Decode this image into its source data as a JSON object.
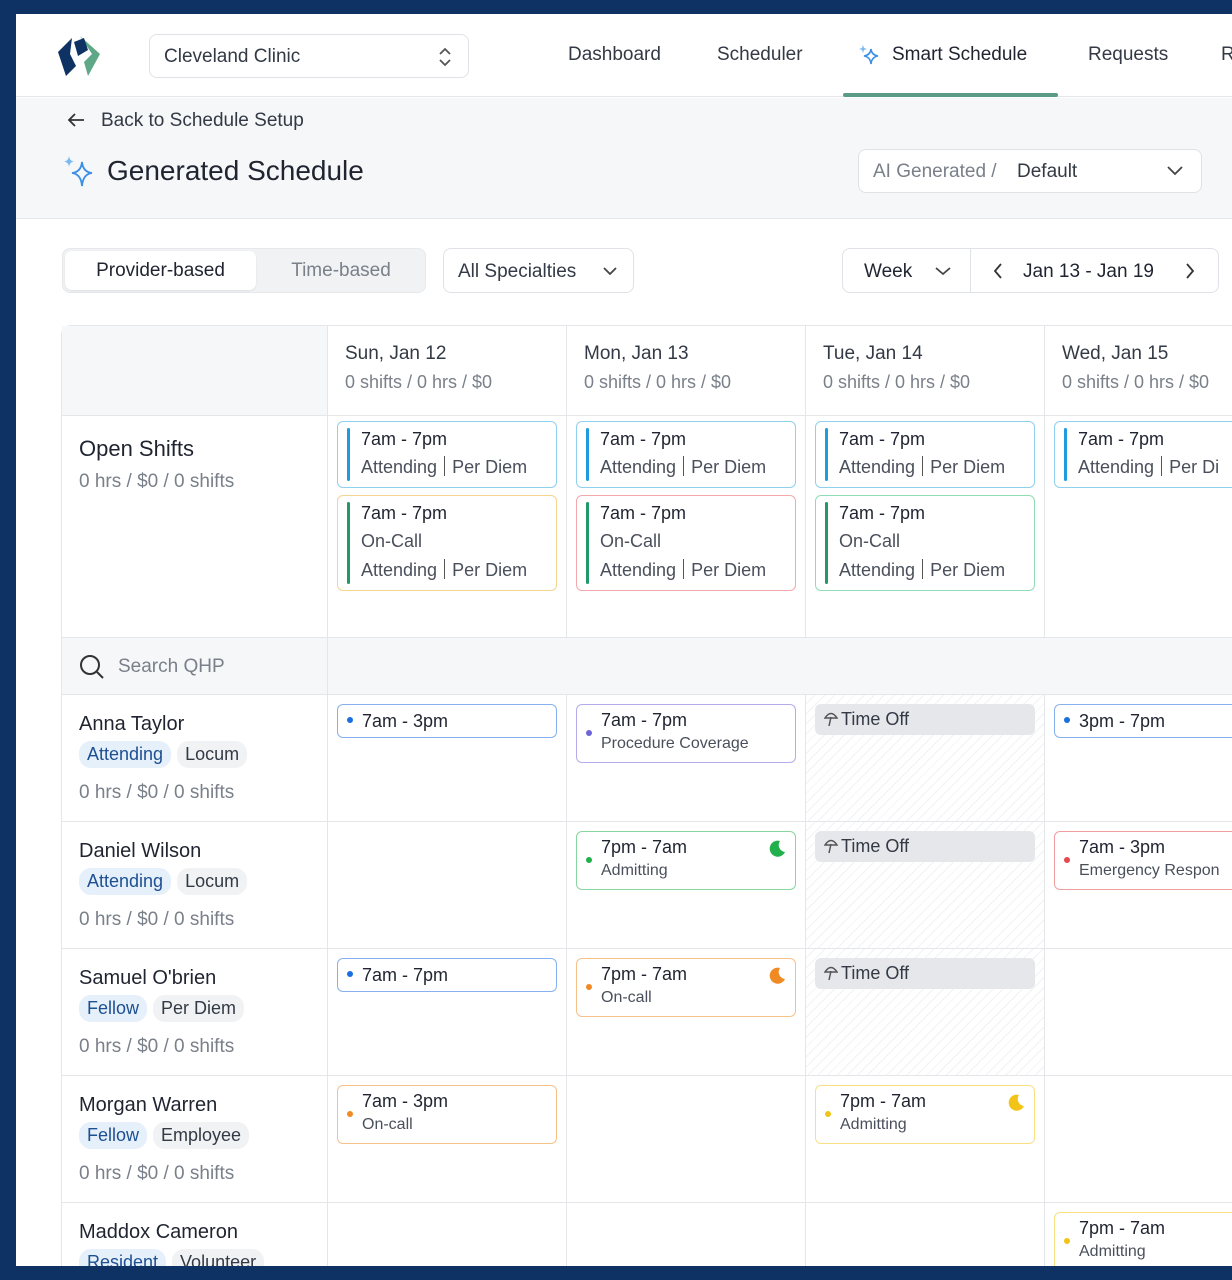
{
  "nav": {
    "org": "Cleveland Clinic",
    "tabs": [
      "Dashboard",
      "Scheduler",
      "Smart Schedule",
      "Requests",
      "R"
    ],
    "active": 2
  },
  "header": {
    "back": "Back to Schedule Setup",
    "title": "Generated Schedule",
    "view_prefix": "AI Generated /",
    "view": "Default"
  },
  "toolbar": {
    "modes": [
      "Provider-based",
      "Time-based"
    ],
    "active_mode": 0,
    "specialty": "All Specialties",
    "range_unit": "Week",
    "range": "Jan 13 - Jan 19"
  },
  "days": [
    {
      "name": "Sun, Jan 12",
      "summary": "0 shifts / 0 hrs / $0"
    },
    {
      "name": "Mon, Jan 13",
      "summary": "0 shifts / 0 hrs / $0"
    },
    {
      "name": "Tue, Jan 14",
      "summary": "0 shifts / 0 hrs / $0"
    },
    {
      "name": "Wed, Jan 15",
      "summary": "0 shifts / 0 hrs / $0"
    }
  ],
  "open_shifts": {
    "label": "Open Shifts",
    "summary": "0 hrs / $0 / 0 shifts",
    "cells": [
      [
        {
          "time": "7am - 7pm",
          "lines": [
            [
              "Attending",
              "Per Diem"
            ]
          ],
          "border": "#8fd0ee",
          "bar": "#1f9be0"
        },
        {
          "time": "7am - 7pm",
          "lines": [
            [
              "On-Call"
            ],
            [
              "Attending",
              "Per Diem"
            ]
          ],
          "border": "#f5d58f",
          "bar": "#1f9a68"
        }
      ],
      [
        {
          "time": "7am - 7pm",
          "lines": [
            [
              "Attending",
              "Per Diem"
            ]
          ],
          "border": "#8fd0ee",
          "bar": "#1f9be0"
        },
        {
          "time": "7am - 7pm",
          "lines": [
            [
              "On-Call"
            ],
            [
              "Attending",
              "Per Diem"
            ]
          ],
          "border": "#f3a9a9",
          "bar": "#1f9a68"
        }
      ],
      [
        {
          "time": "7am - 7pm",
          "lines": [
            [
              "Attending",
              "Per Diem"
            ]
          ],
          "border": "#8fd0ee",
          "bar": "#1f9be0"
        },
        {
          "time": "7am - 7pm",
          "lines": [
            [
              "On-Call"
            ],
            [
              "Attending",
              "Per Diem"
            ]
          ],
          "border": "#8fdcb5",
          "bar": "#1f9a68"
        }
      ],
      [
        {
          "time": "7am - 7pm",
          "lines": [
            [
              "Attending",
              "Per Di"
            ]
          ],
          "border": "#8fd0ee",
          "bar": "#1f9be0"
        }
      ]
    ]
  },
  "search": "Search QHP",
  "providers": [
    {
      "name": "Anna Taylor",
      "tags": [
        "Attending",
        "Locum"
      ],
      "summary": "0 hrs / $0 / 0 shifts",
      "cells": [
        {
          "time": "7am - 3pm",
          "color": "#1b6fe0"
        },
        {
          "time": "7am - 7pm",
          "sub": "Procedure Coverage",
          "color": "#6e63d9"
        },
        {
          "time": "Time Off",
          "off": true
        },
        {
          "time": "3pm - 7pm",
          "color": "#1b6fe0"
        }
      ]
    },
    {
      "name": "Daniel Wilson",
      "tags": [
        "Attending",
        "Locum"
      ],
      "summary": "0 hrs / $0 / 0 shifts",
      "cells": [
        null,
        {
          "time": "7pm - 7am",
          "sub": "Admitting",
          "color": "#21b04b",
          "moon": true
        },
        {
          "time": "Time Off",
          "off": true
        },
        {
          "time": "7am - 3pm",
          "sub": "Emergency Respon",
          "color": "#e5484d"
        }
      ]
    },
    {
      "name": "Samuel O'brien",
      "tags": [
        "Fellow",
        "Per Diem"
      ],
      "summary": "0 hrs / $0 / 0 shifts",
      "cells": [
        {
          "time": "7am - 7pm",
          "color": "#1b6fe0"
        },
        {
          "time": "7pm - 7am",
          "sub": "On-call",
          "color": "#f08a24",
          "moon": true
        },
        {
          "time": "Time Off",
          "off": true
        },
        null
      ]
    },
    {
      "name": "Morgan Warren",
      "tags": [
        "Fellow",
        "Employee"
      ],
      "summary": "0 hrs / $0 / 0 shifts",
      "cells": [
        {
          "time": "7am - 3pm",
          "sub": "On-call",
          "color": "#f08a24"
        },
        null,
        {
          "time": "7pm - 7am",
          "sub": "Admitting",
          "color": "#f2c417",
          "moon": true
        },
        null
      ]
    },
    {
      "name": "Maddox Cameron",
      "tags": [
        "Resident",
        "Volunteer"
      ],
      "cells": [
        null,
        null,
        null,
        {
          "time": "7pm - 7am",
          "sub": "Admitting",
          "color": "#f2c417"
        }
      ]
    }
  ]
}
